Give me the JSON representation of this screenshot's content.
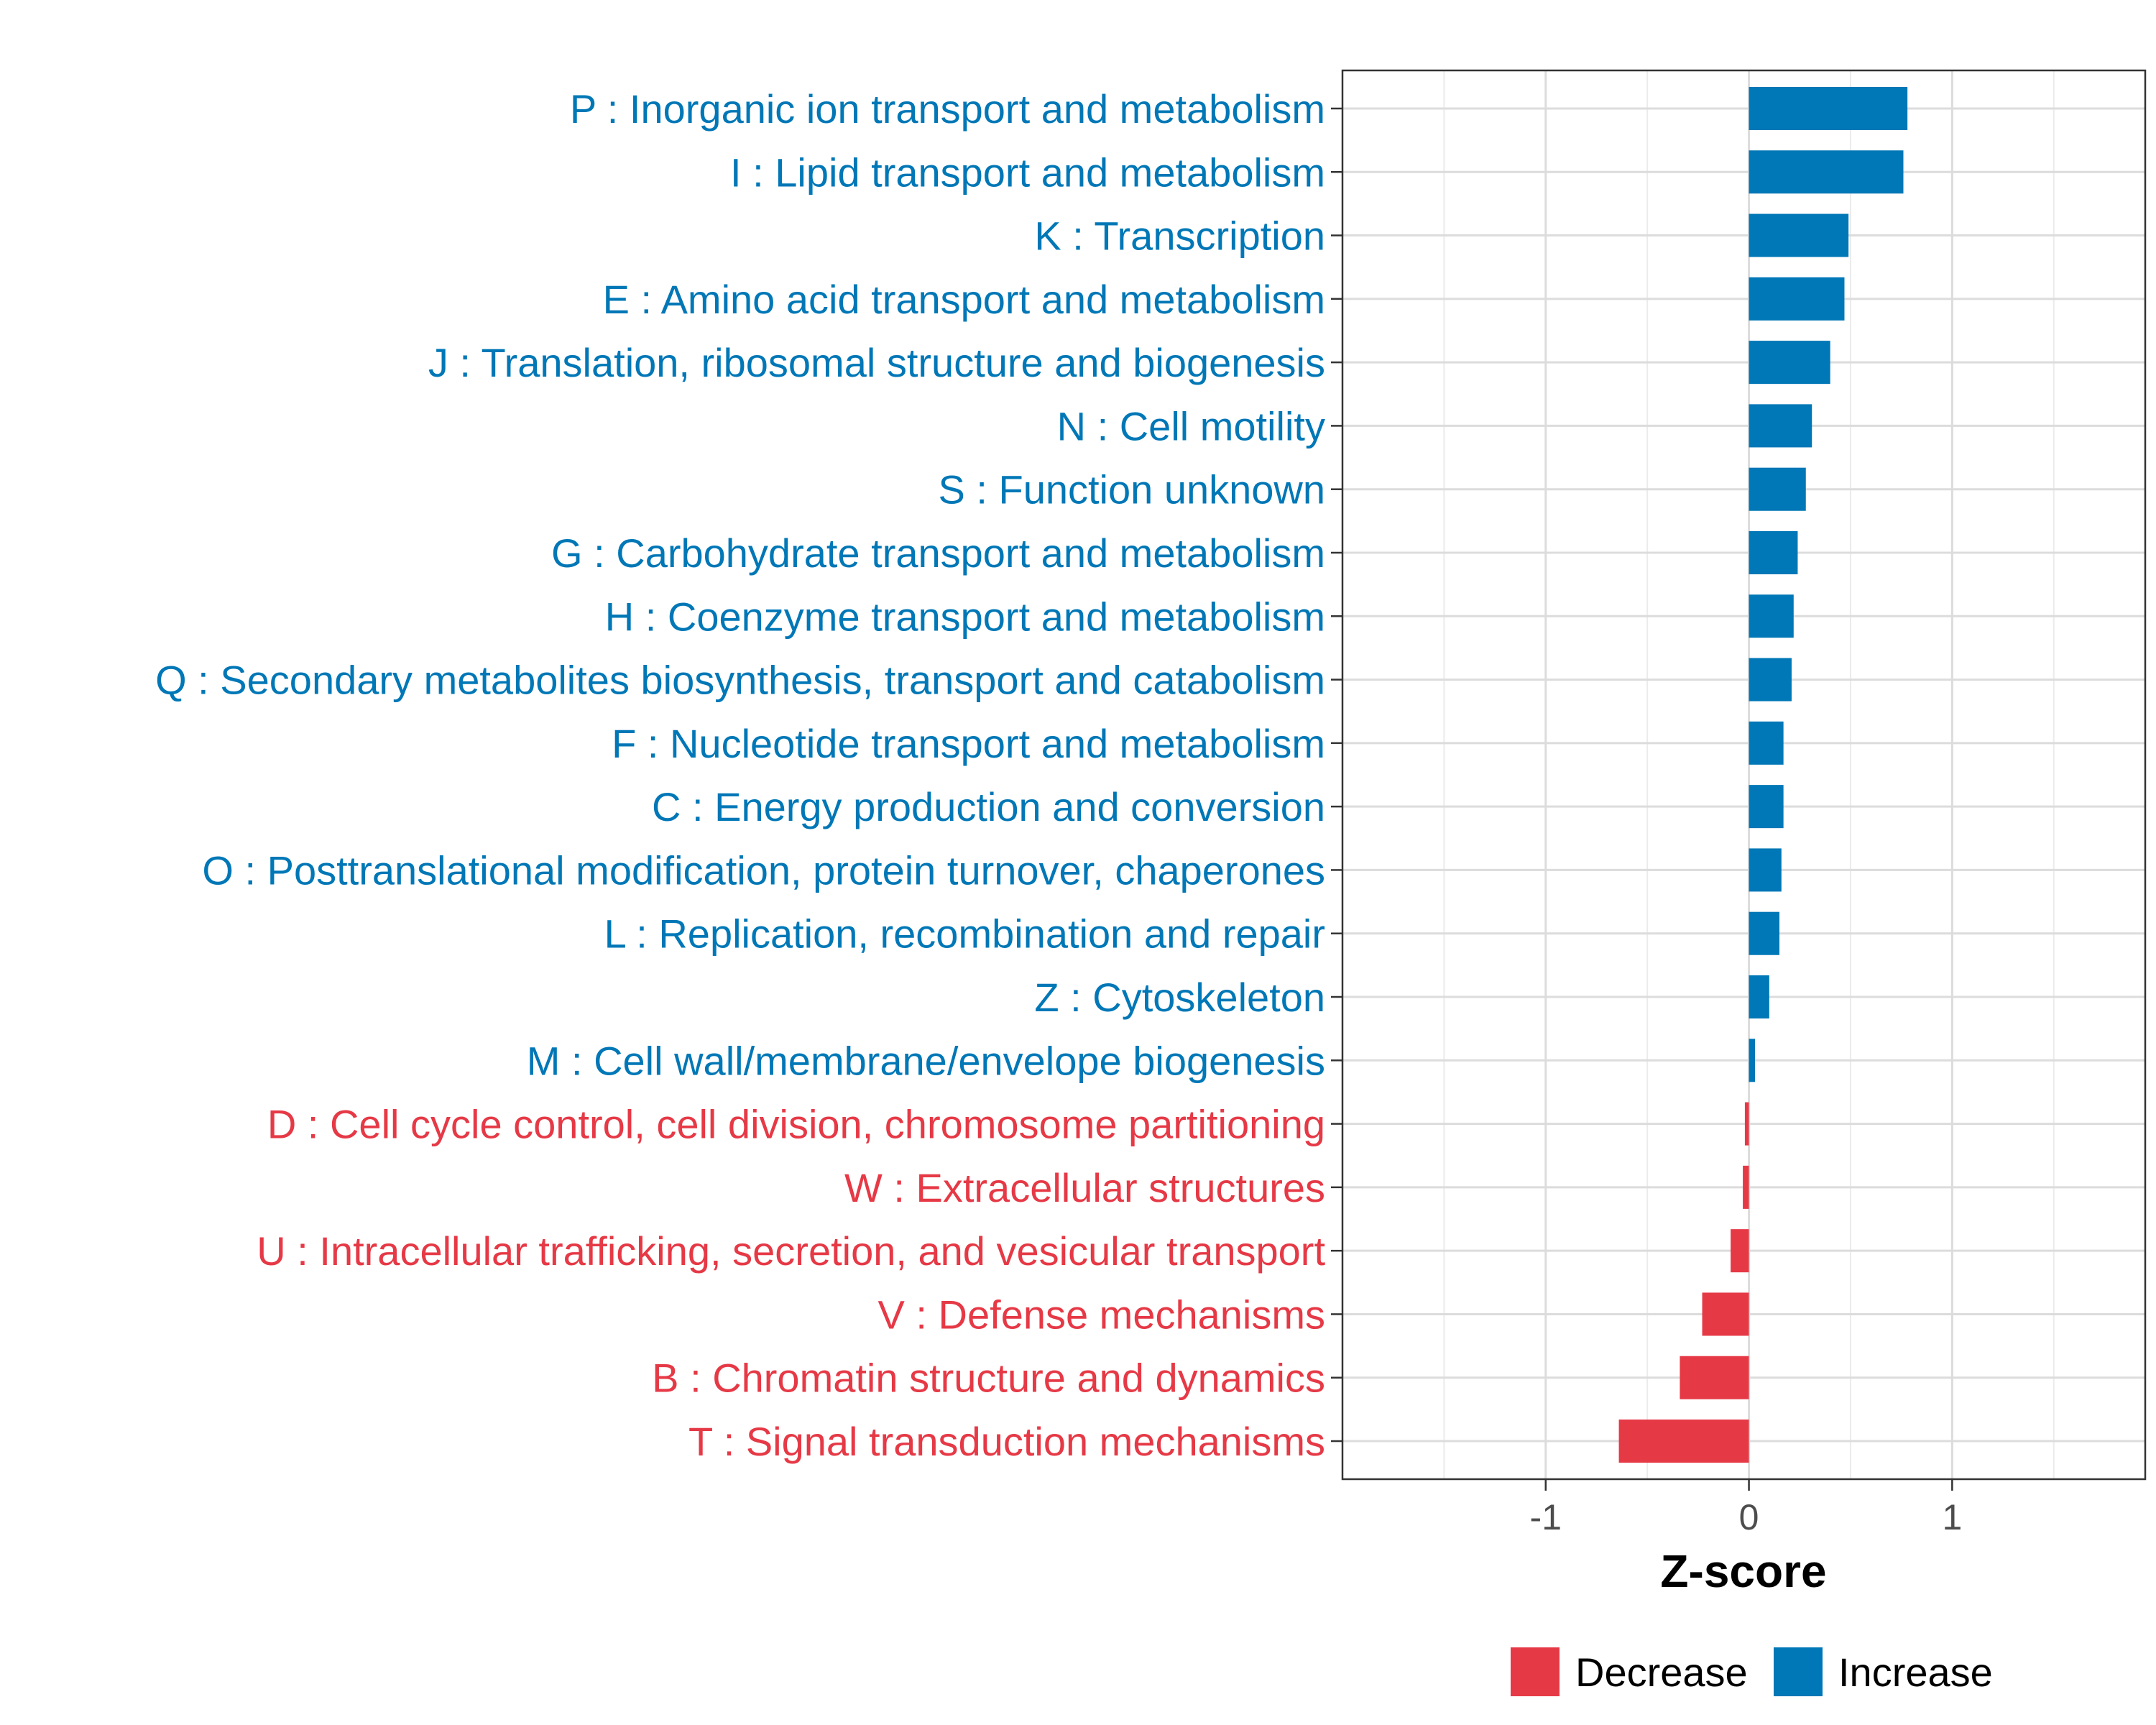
{
  "chart_data": {
    "type": "bar",
    "orientation": "horizontal",
    "title": "",
    "xlabel": "Z-score",
    "ylabel": "",
    "xlim": [
      -2.0,
      1.95
    ],
    "xticks": [
      -1,
      0,
      1
    ],
    "xtick_labels": [
      "-1",
      "0",
      "1"
    ],
    "grid": true,
    "legend_position": "bottom",
    "legend": [
      {
        "name": "Decrease",
        "color": "#E63946"
      },
      {
        "name": "Increase",
        "color": "#0077B6"
      }
    ],
    "categories": [
      "P : Inorganic ion transport and metabolism",
      "I : Lipid transport and metabolism",
      "K : Transcription",
      "E : Amino acid transport and metabolism",
      "J : Translation, ribosomal structure and biogenesis",
      "N : Cell motility",
      "S : Function unknown",
      "G : Carbohydrate transport and metabolism",
      "H : Coenzyme transport and metabolism",
      "Q : Secondary metabolites biosynthesis, transport and catabolism",
      "F : Nucleotide transport and metabolism",
      "C : Energy production and conversion",
      "O : Posttranslational modification, protein turnover, chaperones",
      "L : Replication, recombination and repair",
      "Z : Cytoskeleton",
      "M : Cell wall/membrane/envelope biogenesis",
      "D : Cell cycle control, cell division, chromosome partitioning",
      "W : Extracellular structures",
      "U : Intracellular trafficking, secretion, and vesicular transport",
      "V : Defense mechanisms",
      "B : Chromatin structure and dynamics",
      "T : Signal transduction mechanisms"
    ],
    "values": [
      0.78,
      0.76,
      0.49,
      0.47,
      0.4,
      0.31,
      0.28,
      0.24,
      0.22,
      0.21,
      0.17,
      0.17,
      0.16,
      0.15,
      0.1,
      0.03,
      -0.02,
      -0.03,
      -0.09,
      -0.23,
      -0.34,
      -0.64
    ],
    "series_group": [
      "Increase",
      "Increase",
      "Increase",
      "Increase",
      "Increase",
      "Increase",
      "Increase",
      "Increase",
      "Increase",
      "Increase",
      "Increase",
      "Increase",
      "Increase",
      "Increase",
      "Increase",
      "Increase",
      "Decrease",
      "Decrease",
      "Decrease",
      "Decrease",
      "Decrease",
      "Decrease"
    ]
  }
}
